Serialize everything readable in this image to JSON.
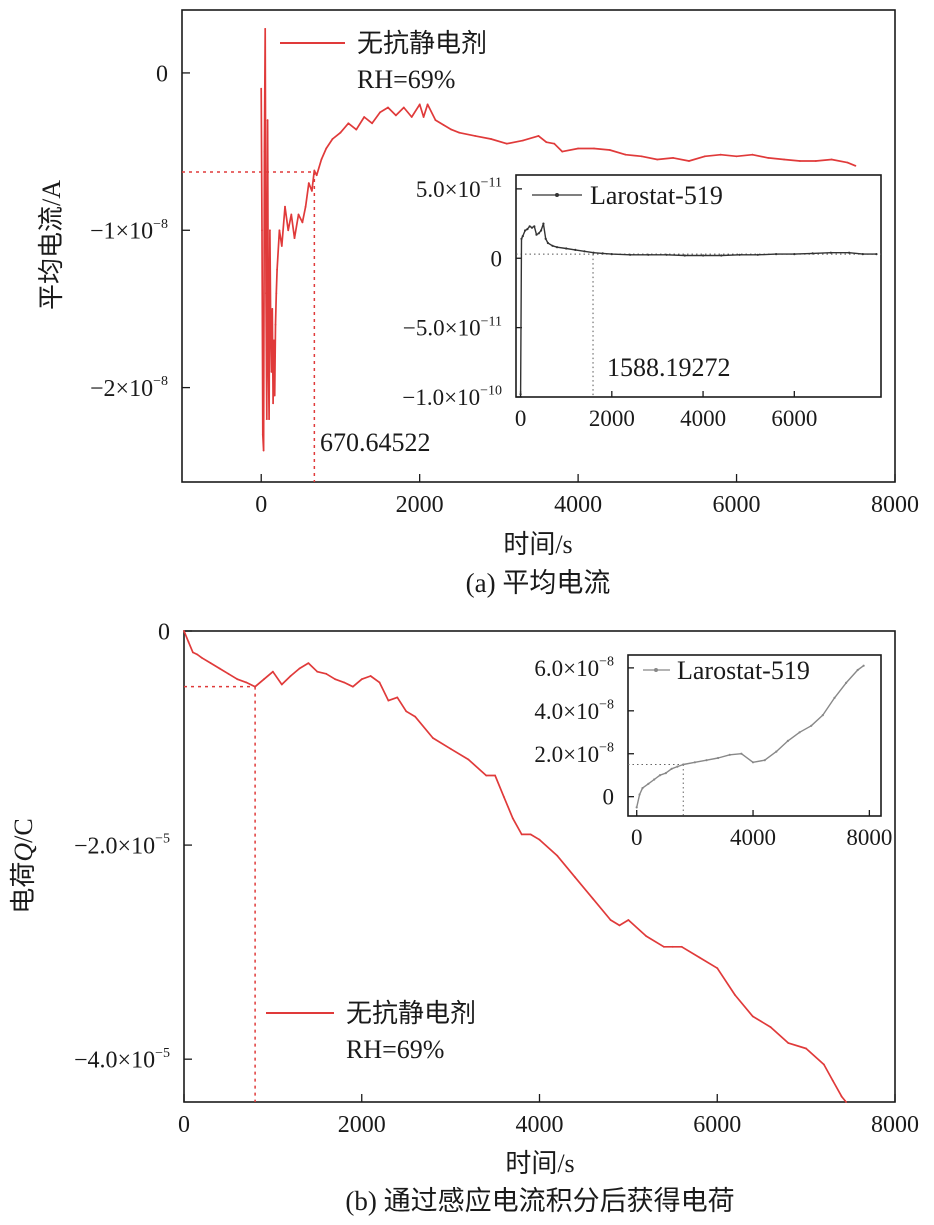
{
  "colors": {
    "series_main": "#e03a3a",
    "inset_a": "#333333",
    "inset_b": "#888888",
    "axis": "#1a1a1a"
  },
  "chart_data": [
    {
      "id": "a",
      "type": "line",
      "caption": "(a) 平均电流",
      "xlabel": "时间/s",
      "ylabel": "平均电流/A",
      "xlim": [
        -1000,
        8000
      ],
      "ylim": [
        -2.6e-08,
        4e-09
      ],
      "x_ticks": [
        {
          "value": 0,
          "label": "0"
        },
        {
          "value": 2000,
          "label": "2000"
        },
        {
          "value": 4000,
          "label": "4000"
        },
        {
          "value": 6000,
          "label": "6000"
        },
        {
          "value": 8000,
          "label": "8000"
        }
      ],
      "y_ticks": [
        {
          "value": 0,
          "label": "0",
          "exp": ""
        },
        {
          "value": -1e-08,
          "label": "−1×10",
          "exp": "−8"
        },
        {
          "value": -2e-08,
          "label": "−2×10",
          "exp": "−8"
        }
      ],
      "legend": {
        "label": "无抗静电剂",
        "note": "RH=69%",
        "position": "top-center"
      },
      "annotation": {
        "x": 670.64522,
        "y": -6.3e-09,
        "label": "670.64522"
      },
      "series": [
        {
          "name": "无抗静电剂",
          "x": [
            0,
            10,
            20,
            30,
            40,
            50,
            60,
            70,
            80,
            90,
            100,
            110,
            120,
            130,
            140,
            150,
            160,
            170,
            180,
            190,
            200,
            230,
            260,
            300,
            340,
            380,
            420,
            470,
            520,
            560,
            600,
            640,
            670,
            700,
            760,
            820,
            900,
            1000,
            1100,
            1200,
            1300,
            1400,
            1500,
            1600,
            1700,
            1800,
            1900,
            2000,
            2050,
            2100,
            2200,
            2300,
            2400,
            2500,
            2700,
            2900,
            3100,
            3300,
            3500,
            3600,
            3700,
            3800,
            4000,
            4200,
            4400,
            4600,
            4800,
            5000,
            5200,
            5400,
            5600,
            5800,
            6000,
            6200,
            6400,
            6600,
            6800,
            7000,
            7200,
            7400,
            7500
          ],
          "y": [
            -1e-09,
            -1e-08,
            -2.3e-08,
            -2.4e-08,
            -5e-09,
            2.8e-09,
            -1.4e-08,
            -2.2e-08,
            -3e-09,
            -1.8e-08,
            -2.2e-08,
            -1e-08,
            -1.6e-08,
            -1.9e-08,
            -1.5e-08,
            -2.1e-08,
            -1.7e-08,
            -2.05e-08,
            -1.6e-08,
            -1.4e-08,
            -1.25e-08,
            -1e-08,
            -1.1e-08,
            -8.5e-09,
            -1e-08,
            -9e-09,
            -1.05e-08,
            -9e-09,
            -9.5e-09,
            -8.5e-09,
            -7e-09,
            -7.5e-09,
            -6.2e-09,
            -6.5e-09,
            -5.5e-09,
            -4.8e-09,
            -4.2e-09,
            -3.8e-09,
            -3.2e-09,
            -3.6e-09,
            -2.8e-09,
            -3.2e-09,
            -2.5e-09,
            -2.2e-09,
            -2.7e-09,
            -2.2e-09,
            -2.8e-09,
            -2e-09,
            -2.8e-09,
            -2e-09,
            -3e-09,
            -3.3e-09,
            -3.6e-09,
            -3.8e-09,
            -4e-09,
            -4.2e-09,
            -4.5e-09,
            -4.3e-09,
            -4e-09,
            -4.4e-09,
            -4.5e-09,
            -5e-09,
            -4.8e-09,
            -4.8e-09,
            -4.9e-09,
            -5.2e-09,
            -5.3e-09,
            -5.5e-09,
            -5.4e-09,
            -5.6e-09,
            -5.3e-09,
            -5.2e-09,
            -5.3e-09,
            -5.2e-09,
            -5.4e-09,
            -5.5e-09,
            -5.6e-09,
            -5.6e-09,
            -5.5e-09,
            -5.7e-09,
            -5.9e-09
          ]
        }
      ],
      "inset": {
        "type": "line",
        "xlim": [
          -100,
          7900
        ],
        "ylim": [
          -1e-10,
          6e-11
        ],
        "x_ticks": [
          {
            "value": 0,
            "label": "0"
          },
          {
            "value": 2000,
            "label": "2000"
          },
          {
            "value": 4000,
            "label": "4000"
          },
          {
            "value": 6000,
            "label": "6000"
          }
        ],
        "y_ticks": [
          {
            "value": 5e-11,
            "label": "5.0×10",
            "exp": "−11"
          },
          {
            "value": 0,
            "label": "0",
            "exp": ""
          },
          {
            "value": -5e-11,
            "label": "−5.0×10",
            "exp": "−11"
          },
          {
            "value": -1e-10,
            "label": "−1.0×10",
            "exp": "−10"
          }
        ],
        "legend": {
          "label": "Larostat-519",
          "position": "top-left"
        },
        "annotation": {
          "x": 1588.19272,
          "y": 3e-12,
          "label": "1588.19272"
        },
        "series": [
          {
            "name": "Larostat-519",
            "x": [
              0,
              20,
              50,
              100,
              150,
              200,
              250,
              300,
              350,
              400,
              450,
              500,
              550,
              600,
              700,
              800,
              1000,
              1200,
              1400,
              1600,
              1800,
              2000,
              2400,
              2800,
              3200,
              3600,
              4000,
              4400,
              4800,
              5200,
              5600,
              6000,
              6400,
              6800,
              7200,
              7500,
              7800
            ],
            "y": [
              -9.8e-11,
              1.4e-11,
              1.6e-11,
              2e-11,
              2.1e-11,
              2.3e-11,
              2.2e-11,
              2.3e-11,
              1.7e-11,
              1.8e-11,
              2e-11,
              2.5e-11,
              1.4e-11,
              1.1e-11,
              9e-12,
              8e-12,
              7e-12,
              6e-12,
              5e-12,
              4e-12,
              3.5e-12,
              3e-12,
              2.5e-12,
              2.5e-12,
              2.5e-12,
              2e-12,
              2e-12,
              2e-12,
              2.5e-12,
              2.5e-12,
              3e-12,
              3e-12,
              3.5e-12,
              4e-12,
              4e-12,
              3e-12,
              3e-12
            ]
          }
        ]
      }
    },
    {
      "id": "b",
      "type": "line",
      "caption": "(b) 通过感应电流积分后获得电荷",
      "xlabel": "时间/s",
      "ylabel_pre": "电荷",
      "ylabel_var": "Q",
      "ylabel_post": "/C",
      "xlim": [
        0,
        8000
      ],
      "ylim": [
        -4.4e-05,
        0
      ],
      "x_ticks": [
        {
          "value": 0,
          "label": "0"
        },
        {
          "value": 2000,
          "label": "2000"
        },
        {
          "value": 4000,
          "label": "4000"
        },
        {
          "value": 6000,
          "label": "6000"
        },
        {
          "value": 8000,
          "label": "8000"
        }
      ],
      "y_ticks": [
        {
          "value": 0,
          "label": "0",
          "exp": ""
        },
        {
          "value": -2e-05,
          "label": "−2.0×10",
          "exp": "−5"
        },
        {
          "value": -4e-05,
          "label": "−4.0×10",
          "exp": "−5"
        }
      ],
      "legend": {
        "label": "无抗静电剂",
        "note": "RH=69%",
        "position": "bottom-left"
      },
      "marker": {
        "x": 800,
        "y": -5.2e-06
      },
      "series": [
        {
          "name": "无抗静电剂",
          "x": [
            0,
            50,
            100,
            150,
            200,
            300,
            400,
            500,
            600,
            700,
            800,
            900,
            1000,
            1100,
            1200,
            1300,
            1400,
            1500,
            1600,
            1700,
            1800,
            1900,
            2000,
            2100,
            2200,
            2300,
            2400,
            2500,
            2600,
            2800,
            3000,
            3200,
            3400,
            3500,
            3600,
            3700,
            3800,
            3900,
            4000,
            4200,
            4400,
            4600,
            4800,
            4900,
            5000,
            5200,
            5400,
            5500,
            5600,
            5800,
            6000,
            6200,
            6400,
            6600,
            6800,
            7000,
            7200,
            7300,
            7400,
            7450
          ],
          "y": [
            0,
            -1e-06,
            -2e-06,
            -2.2e-06,
            -2.5e-06,
            -3e-06,
            -3.5e-06,
            -4e-06,
            -4.5e-06,
            -4.8e-06,
            -5.2e-06,
            -4.5e-06,
            -3.8e-06,
            -5e-06,
            -4.2e-06,
            -3.5e-06,
            -3e-06,
            -3.8e-06,
            -4e-06,
            -4.5e-06,
            -4.8e-06,
            -5.2e-06,
            -4.5e-06,
            -4.2e-06,
            -4.8e-06,
            -6.5e-06,
            -6.2e-06,
            -7.5e-06,
            -8e-06,
            -1e-05,
            -1.1e-05,
            -1.2e-05,
            -1.35e-05,
            -1.35e-05,
            -1.55e-05,
            -1.75e-05,
            -1.9e-05,
            -1.9e-05,
            -1.95e-05,
            -2.1e-05,
            -2.3e-05,
            -2.5e-05,
            -2.7e-05,
            -2.75e-05,
            -2.7e-05,
            -2.85e-05,
            -2.95e-05,
            -2.95e-05,
            -2.95e-05,
            -3.05e-05,
            -3.15e-05,
            -3.4e-05,
            -3.6e-05,
            -3.7e-05,
            -3.85e-05,
            -3.9e-05,
            -4.05e-05,
            -4.2e-05,
            -4.35e-05,
            -4.4e-05
          ]
        }
      ],
      "inset": {
        "type": "line",
        "xlim": [
          -300,
          8400
        ],
        "ylim": [
          -9e-09,
          6.6e-08
        ],
        "x_ticks": [
          {
            "value": 0,
            "label": "0"
          },
          {
            "value": 4000,
            "label": "4000"
          },
          {
            "value": 8000,
            "label": "8000"
          }
        ],
        "y_ticks": [
          {
            "value": 6e-08,
            "label": "6.0×10",
            "exp": "−8"
          },
          {
            "value": 4e-08,
            "label": "4.0×10",
            "exp": "−8"
          },
          {
            "value": 2e-08,
            "label": "2.0×10",
            "exp": "−8"
          },
          {
            "value": 0,
            "label": "0",
            "exp": ""
          }
        ],
        "legend": {
          "label": "Larostat-519",
          "position": "top-center"
        },
        "marker": {
          "x": 1600,
          "y": 1.5e-08
        },
        "series": [
          {
            "name": "Larostat-519",
            "x": [
              0,
              100,
              200,
              400,
              600,
              800,
              1000,
              1200,
              1400,
              1600,
              2000,
              2400,
              2800,
              3200,
              3600,
              4000,
              4400,
              4800,
              5200,
              5600,
              6000,
              6400,
              6800,
              7200,
              7600,
              7800
            ],
            "y": [
              -5e-09,
              1e-09,
              4e-09,
              6e-09,
              8e-09,
              1e-08,
              1.1e-08,
              1.3e-08,
              1.4e-08,
              1.5e-08,
              1.6e-08,
              1.7e-08,
              1.8e-08,
              1.95e-08,
              2e-08,
              1.6e-08,
              1.7e-08,
              2.1e-08,
              2.6e-08,
              3e-08,
              3.3e-08,
              3.8e-08,
              4.6e-08,
              5.3e-08,
              5.9e-08,
              6.1e-08
            ]
          }
        ]
      }
    }
  ]
}
